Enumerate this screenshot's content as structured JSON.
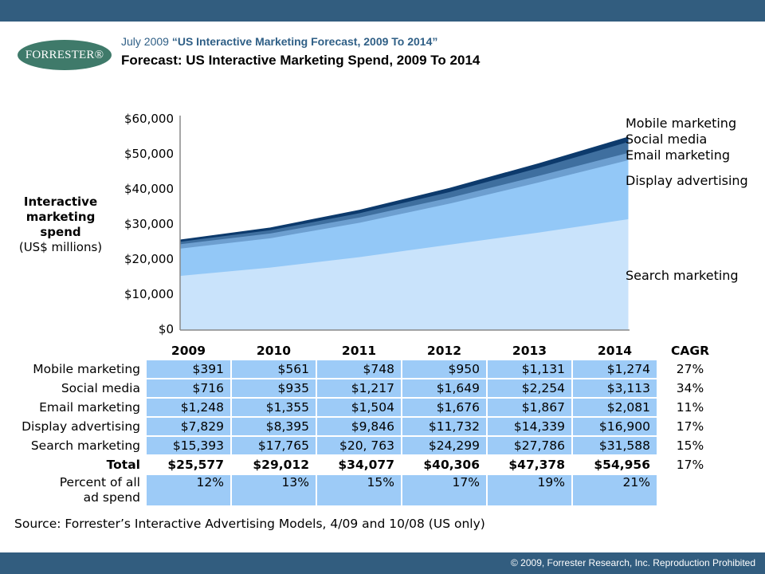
{
  "header": {
    "logo_text": "FORRESTER®",
    "subtitle_date": "July 2009",
    "subtitle_report": "“US Interactive Marketing Forecast, 2009 To 2014”",
    "title": "Forecast: US Interactive Marketing Spend, 2009 To 2014"
  },
  "colors": {
    "bar": "#325d7f",
    "logo": "#3f7a6a",
    "search": "#c9e3fb",
    "display": "#93c8f7",
    "email": "#6d9fd0",
    "social": "#3f6f9f",
    "mobile": "#0d3a6c",
    "table_cell": "#9dcbf7"
  },
  "axis": {
    "label_line1": "Interactive",
    "label_line2": "marketing",
    "label_line3": "spend",
    "label_line4": "(US$ millions)",
    "ticks": [
      "$60,000",
      "$50,000",
      "$40,000",
      "$30,000",
      "$20,000",
      "$10,000",
      "$0"
    ]
  },
  "legend": {
    "mobile": "Mobile marketing",
    "social": "Social media",
    "email": "Email marketing",
    "display": "Display advertising",
    "search": "Search marketing"
  },
  "table": {
    "headers": [
      "2009",
      "2010",
      "2011",
      "2012",
      "2013",
      "2014",
      "CAGR"
    ],
    "rows": [
      {
        "label": "Mobile marketing",
        "values": [
          "$391",
          "$561",
          "$748",
          "$950",
          "$1,131",
          "$1,274"
        ],
        "cagr": "27%"
      },
      {
        "label": "Social media",
        "values": [
          "$716",
          "$935",
          "$1,217",
          "$1,649",
          "$2,254",
          "$3,113"
        ],
        "cagr": "34%"
      },
      {
        "label": "Email marketing",
        "values": [
          "$1,248",
          "$1,355",
          "$1,504",
          "$1,676",
          "$1,867",
          "$2,081"
        ],
        "cagr": "11%"
      },
      {
        "label": "Display advertising",
        "values": [
          "$7,829",
          "$8,395",
          "$9,846",
          "$11,732",
          "$14,339",
          "$16,900"
        ],
        "cagr": "17%"
      },
      {
        "label": "Search marketing",
        "values": [
          "$15,393",
          "$17,765",
          "$20, 763",
          "$24,299",
          "$27,786",
          "$31,588"
        ],
        "cagr": "15%"
      }
    ],
    "total": {
      "label": "Total",
      "values": [
        "$25,577",
        "$29,012",
        "$34,077",
        "$40,306",
        "$47,378",
        "$54,956"
      ],
      "cagr": "17%"
    },
    "percent": {
      "label_line1": "Percent of all",
      "label_line2": "ad spend",
      "values": [
        "12%",
        "13%",
        "15%",
        "17%",
        "19%",
        "21%"
      ]
    }
  },
  "source": "Source: Forrester’s Interactive Advertising Models, 4/09 and 10/08 (US only)",
  "footer": {
    "copyright": "© 2009, Forrester Research, Inc. Reproduction Prohibited"
  },
  "chart_data": {
    "type": "area",
    "stacked": true,
    "title": "Forecast: US Interactive Marketing Spend, 2009 To 2014",
    "xlabel": "",
    "ylabel": "Interactive marketing spend (US$ millions)",
    "ylim": [
      0,
      60000
    ],
    "yticks": [
      0,
      10000,
      20000,
      30000,
      40000,
      50000,
      60000
    ],
    "categories": [
      "2009",
      "2010",
      "2011",
      "2012",
      "2013",
      "2014"
    ],
    "series": [
      {
        "name": "Search marketing",
        "values": [
          15393,
          17765,
          20763,
          24299,
          27786,
          31588
        ],
        "cagr": "15%"
      },
      {
        "name": "Display advertising",
        "values": [
          7829,
          8395,
          9846,
          11732,
          14339,
          16900
        ],
        "cagr": "17%"
      },
      {
        "name": "Email marketing",
        "values": [
          1248,
          1355,
          1504,
          1676,
          1867,
          2081
        ],
        "cagr": "11%"
      },
      {
        "name": "Social media",
        "values": [
          716,
          935,
          1217,
          1649,
          2254,
          3113
        ],
        "cagr": "34%"
      },
      {
        "name": "Mobile marketing",
        "values": [
          391,
          561,
          748,
          950,
          1131,
          1274
        ],
        "cagr": "27%"
      }
    ],
    "totals": [
      25577,
      29012,
      34077,
      40306,
      47378,
      54956
    ],
    "total_cagr": "17%",
    "percent_of_all_ad_spend": [
      "12%",
      "13%",
      "15%",
      "17%",
      "19%",
      "21%"
    ],
    "legend_position": "right (inline labels)",
    "grid": false
  }
}
